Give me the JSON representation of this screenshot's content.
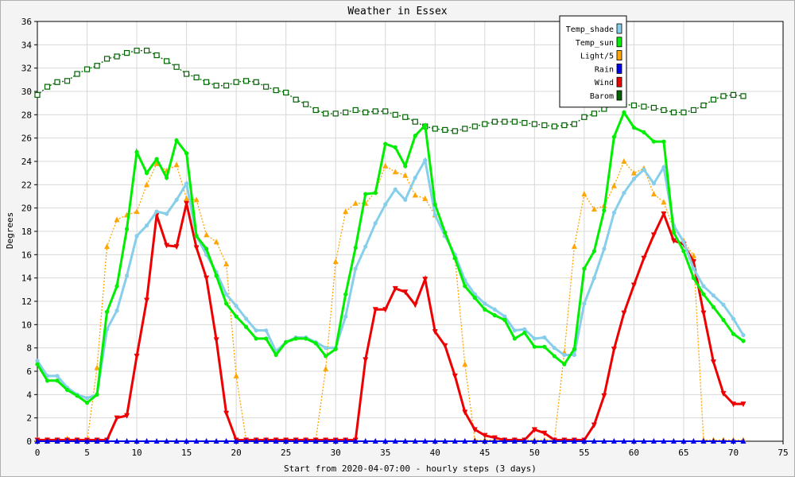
{
  "chart_data": {
    "type": "line",
    "title": "Weather in Essex",
    "xlabel": "Start from 2020-04-07:00 - hourly steps (3 days)",
    "ylabel": "Degrees",
    "xlim": [
      0,
      75
    ],
    "ylim": [
      0,
      36
    ],
    "xticks": [
      0,
      5,
      10,
      15,
      20,
      25,
      30,
      35,
      40,
      45,
      50,
      55,
      60,
      65,
      70,
      75
    ],
    "yticks": [
      0,
      2,
      4,
      6,
      8,
      10,
      12,
      14,
      16,
      18,
      20,
      22,
      24,
      26,
      28,
      30,
      32,
      34,
      36
    ],
    "grid": true,
    "legend_position": "top-right",
    "series": [
      {
        "name": "Temp_shade",
        "color": "#87ceeb",
        "marker": "circle",
        "style": "solid",
        "values": [
          6.9,
          5.6,
          5.6,
          4.6,
          4.0,
          3.7,
          4.0,
          9.6,
          11.2,
          14.2,
          17.6,
          18.5,
          19.7,
          19.5,
          20.7,
          22.1,
          17.6,
          16.0,
          14.5,
          12.6,
          11.6,
          10.5,
          9.5,
          9.5,
          7.7,
          8.5,
          8.9,
          8.9,
          8.5,
          8.0,
          8.0,
          10.7,
          14.8,
          16.7,
          18.7,
          20.3,
          21.6,
          20.7,
          22.6,
          24.1,
          19.4,
          17.6,
          16.0,
          13.8,
          12.6,
          11.8,
          11.3,
          10.7,
          9.5,
          9.6,
          8.8,
          8.9,
          8.0,
          7.4,
          7.4,
          11.8,
          14.0,
          16.5,
          19.6,
          21.3,
          22.5,
          23.3,
          22.1,
          23.5,
          18.5,
          17.1,
          14.8,
          13.3,
          12.5,
          11.7,
          10.5,
          9.1
        ]
      },
      {
        "name": "Temp_sun",
        "color": "#00ee00",
        "marker": "circle",
        "style": "solid",
        "values": [
          6.6,
          5.2,
          5.2,
          4.4,
          3.9,
          3.3,
          4.0,
          11.1,
          13.3,
          18.2,
          24.8,
          23.0,
          24.2,
          22.6,
          25.8,
          24.7,
          17.6,
          16.5,
          14.2,
          11.8,
          10.7,
          9.8,
          8.8,
          8.8,
          7.4,
          8.5,
          8.8,
          8.8,
          8.4,
          7.3,
          7.9,
          12.6,
          16.6,
          21.2,
          21.3,
          25.5,
          25.2,
          23.6,
          26.2,
          27.1,
          20.3,
          17.9,
          15.7,
          13.3,
          12.3,
          11.3,
          10.8,
          10.4,
          8.8,
          9.3,
          8.1,
          8.1,
          7.3,
          6.6,
          7.9,
          14.8,
          16.3,
          19.8,
          26.1,
          28.2,
          26.9,
          26.5,
          25.7,
          25.7,
          17.9,
          16.3,
          14.0,
          12.6,
          11.5,
          10.4,
          9.2,
          8.6
        ]
      },
      {
        "name": "Light/5",
        "color": "#ffa500",
        "marker": "triangle",
        "style": "dotted",
        "values": [
          0.1,
          0.1,
          0.1,
          0.2,
          0.1,
          0.0,
          6.3,
          16.7,
          19.0,
          19.4,
          19.7,
          22.0,
          23.8,
          23.2,
          23.7,
          20.8,
          20.7,
          17.7,
          17.1,
          15.2,
          5.6,
          0.1,
          0.1,
          0.1,
          0.1,
          0.1,
          0.1,
          0.1,
          0.1,
          6.2,
          15.4,
          19.7,
          20.4,
          20.4,
          21.4,
          23.6,
          23.1,
          22.8,
          21.1,
          20.8,
          19.4,
          17.7,
          15.8,
          6.6,
          0.1,
          0.1,
          0.1,
          0.1,
          0.1,
          0.1,
          0.1,
          0.1,
          0.1,
          7.6,
          16.7,
          21.2,
          19.9,
          20.2,
          21.9,
          24.0,
          23.0,
          23.4,
          21.2,
          20.5,
          18.2,
          17.2,
          15.9,
          0.1,
          0.1,
          0.1,
          0.1,
          0.1
        ]
      },
      {
        "name": "Rain",
        "color": "#0000ee",
        "marker": "triangle",
        "style": "solid",
        "values": [
          0,
          0,
          0,
          0,
          0,
          0,
          0,
          0,
          0,
          0,
          0,
          0,
          0,
          0,
          0,
          0,
          0,
          0,
          0,
          0,
          0,
          0,
          0,
          0,
          0,
          0,
          0,
          0,
          0,
          0,
          0,
          0,
          0,
          0,
          0,
          0,
          0,
          0,
          0,
          0,
          0,
          0,
          0,
          0,
          0,
          0,
          0,
          0,
          0,
          0,
          0,
          0,
          0,
          0,
          0,
          0,
          0,
          0,
          0,
          0,
          0,
          0,
          0,
          0,
          0,
          0,
          0,
          0,
          0,
          0,
          0,
          0
        ]
      },
      {
        "name": "Wind",
        "color": "#ee0000",
        "marker": "triangle-down",
        "style": "solid",
        "values": [
          0.1,
          0.1,
          0.1,
          0.1,
          0.1,
          0.1,
          0.1,
          0.1,
          2.0,
          2.2,
          7.3,
          12.1,
          19.4,
          16.8,
          16.7,
          20.4,
          16.6,
          14.0,
          8.7,
          2.4,
          0.1,
          0.1,
          0.1,
          0.1,
          0.1,
          0.1,
          0.1,
          0.1,
          0.1,
          0.1,
          0.1,
          0.1,
          0.1,
          7.0,
          11.3,
          11.3,
          13.1,
          12.8,
          11.7,
          13.9,
          9.4,
          8.2,
          5.6,
          2.5,
          1.0,
          0.5,
          0.3,
          0.1,
          0.1,
          0.1,
          1.0,
          0.7,
          0.1,
          0.1,
          0.1,
          0.1,
          1.4,
          3.9,
          7.9,
          11.0,
          13.4,
          15.7,
          17.7,
          19.5,
          17.2,
          16.9,
          15.4,
          11.0,
          6.8,
          4.1,
          3.2,
          3.2
        ]
      },
      {
        "name": "Barom",
        "color": "#006400",
        "marker": "square-open",
        "style": "dotted",
        "values": [
          29.7,
          30.4,
          30.8,
          30.9,
          31.5,
          31.9,
          32.2,
          32.8,
          33.0,
          33.3,
          33.5,
          33.5,
          33.1,
          32.6,
          32.1,
          31.5,
          31.2,
          30.8,
          30.5,
          30.5,
          30.8,
          30.9,
          30.8,
          30.4,
          30.1,
          29.9,
          29.3,
          28.9,
          28.4,
          28.1,
          28.1,
          28.2,
          28.4,
          28.2,
          28.3,
          28.3,
          28.0,
          27.8,
          27.4,
          27.0,
          26.8,
          26.7,
          26.6,
          26.8,
          27.0,
          27.2,
          27.4,
          27.4,
          27.4,
          27.3,
          27.2,
          27.1,
          27.0,
          27.1,
          27.2,
          27.8,
          28.1,
          28.5,
          28.9,
          28.9,
          28.8,
          28.7,
          28.6,
          28.4,
          28.2,
          28.2,
          28.4,
          28.8,
          29.3,
          29.6,
          29.7,
          29.6
        ]
      }
    ]
  }
}
